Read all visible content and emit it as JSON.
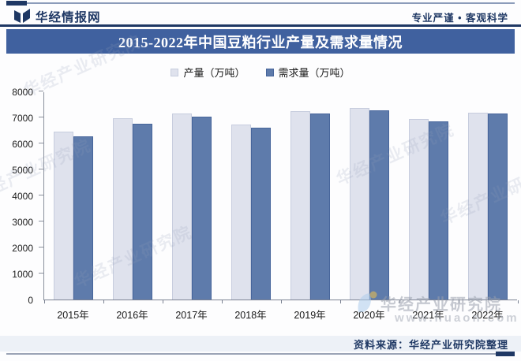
{
  "header": {
    "logo_text": "华经情报网",
    "tagline": "专业严谨 • 客观科学"
  },
  "title": "2015-2022年中国豆粕行业产量及需求量情况",
  "chart_data": {
    "type": "bar",
    "title": "2015-2022年中国豆粕行业产量及需求量情况",
    "categories": [
      "2015年",
      "2016年",
      "2017年",
      "2018年",
      "2019年",
      "2020年",
      "2021年",
      "2022年"
    ],
    "series": [
      {
        "name": "产量（万吨）",
        "color": "#dfe2ed",
        "border_color": "#c7cdde",
        "values": [
          6460,
          6960,
          7160,
          6720,
          7250,
          7350,
          6940,
          7180
        ]
      },
      {
        "name": "需求量（万吨）",
        "color": "#5e7bab",
        "border_color": "#47659b",
        "values": [
          6260,
          6770,
          7030,
          6610,
          7140,
          7270,
          6860,
          7160
        ]
      }
    ],
    "xlabel": "",
    "ylabel": "",
    "ylim": [
      0,
      8000
    ],
    "ytick_step": 1000,
    "grid": false,
    "legend_position": "top-center"
  },
  "watermark": {
    "text": "华经产业研究院",
    "url": "www.huaon.com"
  },
  "footer": {
    "source": "资料来源：华经产业研究院整理"
  },
  "colors": {
    "navy": "#1f3864",
    "banner_blue": "#40619f",
    "production_bar": "#dfe2ed",
    "demand_bar": "#5e7bab",
    "footer_band": "#edf1f7"
  }
}
